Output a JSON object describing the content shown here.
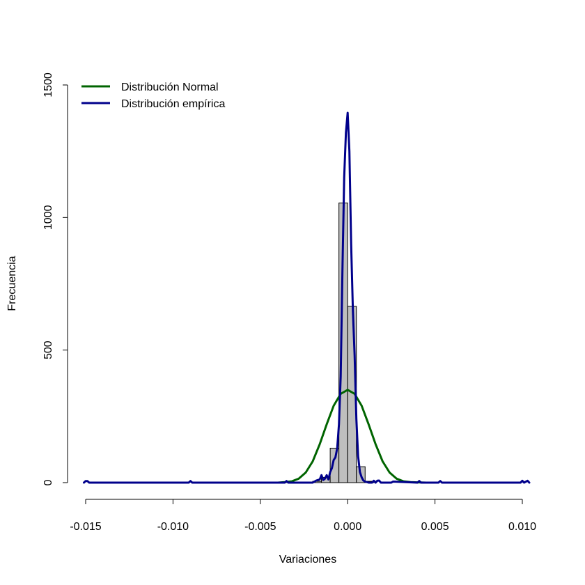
{
  "chart_data": {
    "type": "bar",
    "title": "",
    "xlabel": "Variaciones",
    "ylabel": "Frecuencia",
    "xlim": [
      -0.0151,
      0.0104
    ],
    "ylim": [
      0,
      1500
    ],
    "x_ticks": [
      -0.015,
      -0.01,
      -0.005,
      0.0,
      0.005,
      0.01
    ],
    "x_tick_labels": [
      "-0.015",
      "-0.010",
      "-0.005",
      "0.000",
      "0.005",
      "0.010"
    ],
    "y_ticks": [
      0,
      500,
      1000,
      1500
    ],
    "y_tick_labels": [
      "0",
      "500",
      "1000",
      "1500"
    ],
    "grid": false,
    "legend_position": "top-left",
    "histogram": {
      "fill": "#bebebe",
      "stroke": "#000000",
      "bins": [
        {
          "x0": -0.002,
          "x1": -0.0015,
          "count": 5
        },
        {
          "x0": -0.0015,
          "x1": -0.001,
          "count": 20
        },
        {
          "x0": -0.001,
          "x1": -0.0005,
          "count": 130
        },
        {
          "x0": -0.0005,
          "x1": 0.0,
          "count": 1055
        },
        {
          "x0": 0.0,
          "x1": 0.0005,
          "count": 665
        },
        {
          "x0": 0.0005,
          "x1": 0.001,
          "count": 60
        },
        {
          "x0": 0.001,
          "x1": 0.0015,
          "count": 5
        }
      ]
    },
    "series": [
      {
        "name": "Distribución Normal",
        "color": "#006400",
        "x": [
          -0.004,
          -0.0036,
          -0.0032,
          -0.0028,
          -0.0024,
          -0.002,
          -0.0016,
          -0.0012,
          -0.0008,
          -0.0004,
          0.0,
          0.0004,
          0.0008,
          0.0012,
          0.0016,
          0.002,
          0.0024,
          0.0028,
          0.0032,
          0.0036,
          0.004,
          0.0045
        ],
        "values": [
          0,
          2,
          5,
          15,
          38,
          80,
          145,
          220,
          290,
          335,
          350,
          335,
          290,
          220,
          145,
          80,
          38,
          15,
          5,
          2,
          1,
          0
        ]
      },
      {
        "name": "Distribución empírica",
        "color": "#00008b",
        "x": [
          -0.0151,
          -0.015,
          -0.0149,
          -0.0148,
          -0.0091,
          -0.009,
          -0.0089,
          -0.0036,
          -0.0035,
          -0.0034,
          -0.002,
          -0.0018,
          -0.0016,
          -0.0015,
          -0.0014,
          -0.0013,
          -0.0012,
          -0.0011,
          -0.001,
          -0.0009,
          -0.0008,
          -0.0007,
          -0.0006,
          -0.0005,
          -0.0004,
          -0.0003,
          -0.0002,
          -0.0001,
          0.0,
          0.0001,
          0.0002,
          0.0003,
          0.0004,
          0.0005,
          0.0006,
          0.0007,
          0.0008,
          0.0009,
          0.001,
          0.0012,
          0.0014,
          0.0015,
          0.0016,
          0.0017,
          0.0018,
          0.0019,
          0.0021,
          0.0025,
          0.0026,
          0.004,
          0.0041,
          0.0042,
          0.0052,
          0.0053,
          0.0054,
          0.0099,
          0.01,
          0.0101,
          0.0103,
          0.0104
        ],
        "values": [
          0,
          6,
          6,
          0,
          0,
          6,
          0,
          0,
          6,
          0,
          0,
          8,
          12,
          28,
          10,
          15,
          28,
          12,
          40,
          55,
          85,
          95,
          130,
          220,
          400,
          800,
          1150,
          1320,
          1395,
          1250,
          900,
          650,
          480,
          240,
          100,
          40,
          20,
          8,
          4,
          0,
          0,
          7,
          0,
          7,
          8,
          0,
          0,
          0,
          4,
          0,
          6,
          0,
          0,
          6,
          0,
          0,
          7,
          0,
          7,
          0
        ]
      }
    ]
  }
}
